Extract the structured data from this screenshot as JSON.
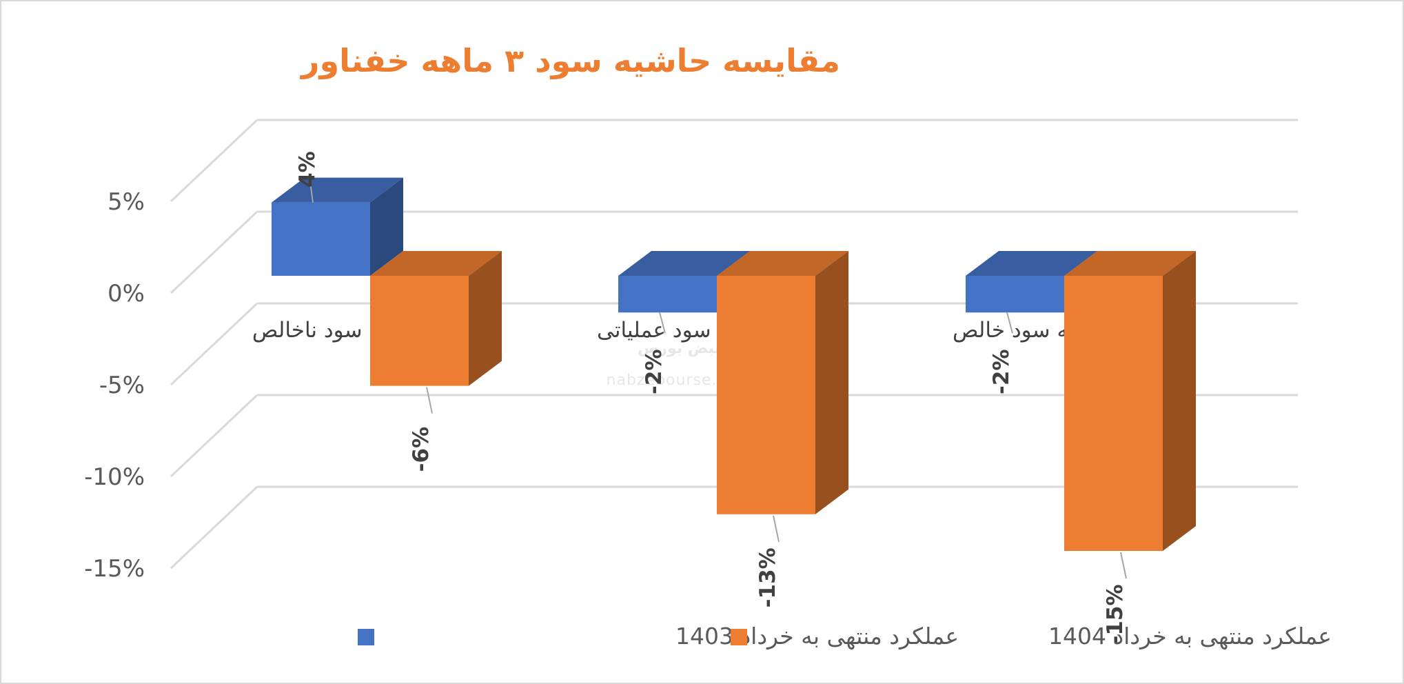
{
  "chart_data": {
    "type": "bar",
    "title": "مقایسه حاشیه سود ۳ ماهه خفناور",
    "categories": [
      "حاشیه سود ناخالص",
      "حاشیه سود عملیاتی",
      "حاشیه سود خالص"
    ],
    "series": [
      {
        "name": "عملکرد منتهی به خرداد 1403",
        "values": [
          4,
          -2,
          -2
        ],
        "labels": [
          "4%",
          "-2%",
          "-2%"
        ]
      },
      {
        "name": "عملکرد منتهی به خرداد 1404",
        "values": [
          -6,
          -13,
          -15
        ],
        "labels": [
          "-6%",
          "-13%",
          "-15%"
        ]
      }
    ],
    "y_ticks": [
      5,
      0,
      -5,
      -10,
      -15
    ],
    "y_tick_labels": [
      "5%",
      "0%",
      "-5%",
      "-10%",
      "-15%"
    ],
    "ylim": [
      -15,
      5
    ],
    "grid": true,
    "legend_position": "bottom",
    "three_d": true
  },
  "colors": {
    "series_1403": "#4472C4",
    "series_1404": "#ED7D31",
    "title": "#ED7D31",
    "grid": "#D9D9D9",
    "text": "#595959"
  },
  "watermark": {
    "logo_text": "نبض بورس",
    "url": "nabzebourse.com"
  }
}
